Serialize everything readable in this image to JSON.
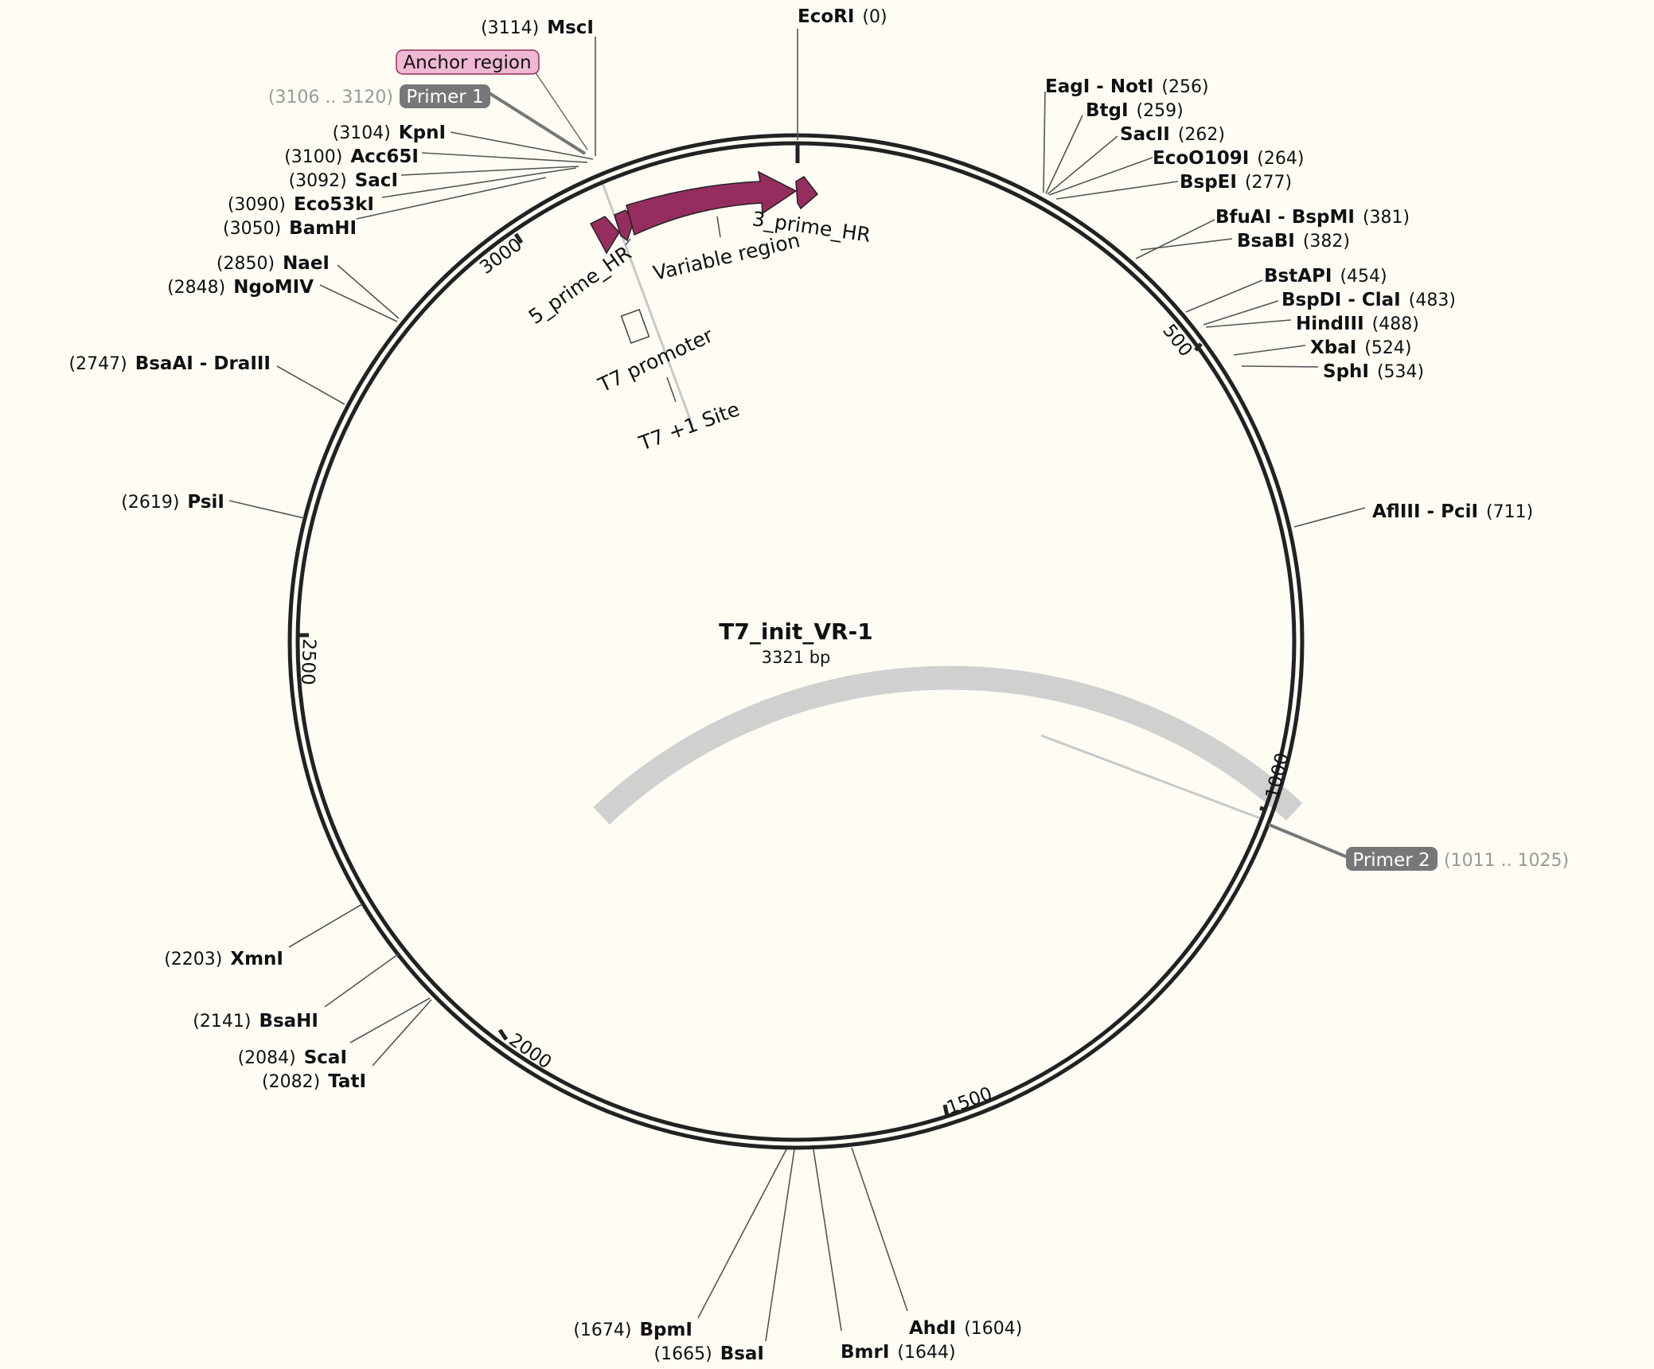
{
  "plasmid": {
    "name": "T7_init_VR-1",
    "length_label": "3321 bp",
    "length": 3321
  },
  "ticks": [
    {
      "value": 500,
      "label": "500"
    },
    {
      "value": 1000,
      "label": "1000"
    },
    {
      "value": 1500,
      "label": "1500"
    },
    {
      "value": 2000,
      "label": "2000"
    },
    {
      "value": 2500,
      "label": "2500"
    },
    {
      "value": 3000,
      "label": "3000"
    }
  ],
  "features": {
    "five_prime_hr": "5_prime_HR",
    "variable_region": "Variable region",
    "three_prime_hr": "3_prime_HR",
    "t7_promoter": "T7 promoter",
    "t7_site": "T7 +1 Site",
    "anchor_region": "Anchor region",
    "feature_color": "#962d5f",
    "anchor_color": "#efb8d3"
  },
  "primers": [
    {
      "name": "Primer 1",
      "range": "(3106 .. 3120)"
    },
    {
      "name": "Primer 2",
      "range": "(1011 .. 1025)"
    }
  ],
  "sites": [
    {
      "id": "ecori",
      "enzyme": "EcoRI",
      "pos": "(0)"
    },
    {
      "id": "eagi",
      "enzyme": "EagI - NotI",
      "pos": "(256)"
    },
    {
      "id": "btgi",
      "enzyme": "BtgI",
      "pos": "(259)"
    },
    {
      "id": "sacii",
      "enzyme": "SacII",
      "pos": "(262)"
    },
    {
      "id": "ecoo109i",
      "enzyme": "EcoO109I",
      "pos": "(264)"
    },
    {
      "id": "bspei",
      "enzyme": "BspEI",
      "pos": "(277)"
    },
    {
      "id": "bfuai",
      "enzyme": "BfuAI - BspMI",
      "pos": "(381)"
    },
    {
      "id": "bsabi",
      "enzyme": "BsaBI",
      "pos": "(382)"
    },
    {
      "id": "bstapi",
      "enzyme": "BstAPI",
      "pos": "(454)"
    },
    {
      "id": "bspdi",
      "enzyme": "BspDI - ClaI",
      "pos": "(483)"
    },
    {
      "id": "hindiii",
      "enzyme": "HindIII",
      "pos": "(488)"
    },
    {
      "id": "xbai",
      "enzyme": "XbaI",
      "pos": "(524)"
    },
    {
      "id": "sphi",
      "enzyme": "SphI",
      "pos": "(534)"
    },
    {
      "id": "aflIII",
      "enzyme": "AflIII - PciI",
      "pos": "(711)"
    },
    {
      "id": "ahdi",
      "enzyme": "AhdI",
      "pos": "(1604)"
    },
    {
      "id": "bmri",
      "enzyme": "BmrI",
      "pos": "(1644)"
    },
    {
      "id": "bsai",
      "enzyme": "BsaI",
      "pos": "(1665)"
    },
    {
      "id": "bpmi",
      "enzyme": "BpmI",
      "pos": "(1674)"
    },
    {
      "id": "tati",
      "enzyme": "TatI",
      "pos": "(2082)"
    },
    {
      "id": "scai",
      "enzyme": "ScaI",
      "pos": "(2084)"
    },
    {
      "id": "bsahi",
      "enzyme": "BsaHI",
      "pos": "(2141)"
    },
    {
      "id": "xmni",
      "enzyme": "XmnI",
      "pos": "(2203)"
    },
    {
      "id": "psii",
      "enzyme": "PsiI",
      "pos": "(2619)"
    },
    {
      "id": "bsaai",
      "enzyme": "BsaAI - DraIII",
      "pos": "(2747)"
    },
    {
      "id": "ngomiv",
      "enzyme": "NgoMIV",
      "pos": "(2848)"
    },
    {
      "id": "naei",
      "enzyme": "NaeI",
      "pos": "(2850)"
    },
    {
      "id": "bamhi",
      "enzyme": "BamHI",
      "pos": "(3050)"
    },
    {
      "id": "eco53ki",
      "enzyme": "Eco53kI",
      "pos": "(3090)"
    },
    {
      "id": "saci",
      "enzyme": "SacI",
      "pos": "(3092)"
    },
    {
      "id": "acc65i",
      "enzyme": "Acc65I",
      "pos": "(3100)"
    },
    {
      "id": "kpni",
      "enzyme": "KpnI",
      "pos": "(3104)"
    },
    {
      "id": "msci",
      "enzyme": "MscI",
      "pos": "(3114)"
    }
  ]
}
